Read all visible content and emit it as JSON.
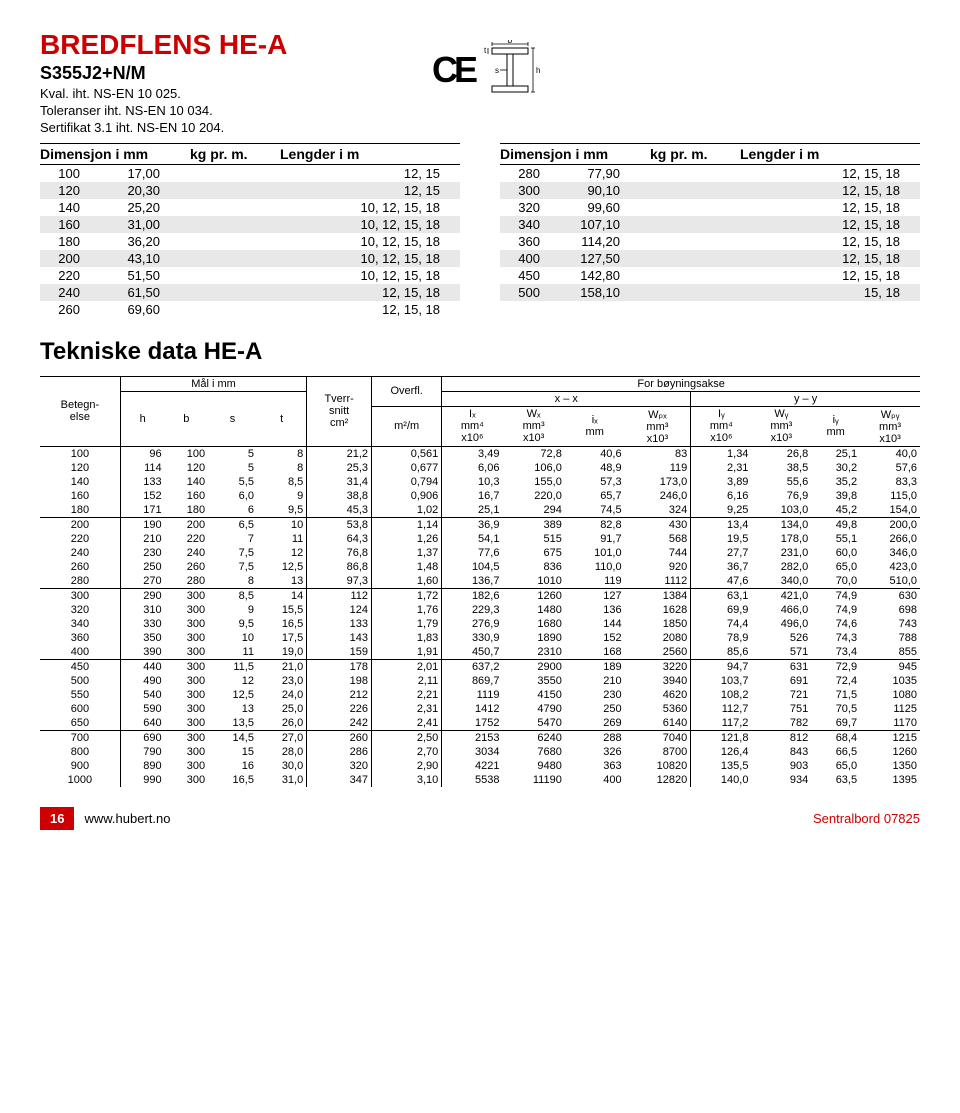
{
  "header": {
    "title": "BREDFLENS HE-A",
    "subtitle": "S355J2+N/M",
    "meta1": "Kval. iht. NS-EN 10 025.",
    "meta2": "Toleranser iht. NS-EN 10 034.",
    "meta3": "Sertifikat 3.1 iht. NS-EN 10 204.",
    "ce": "CE"
  },
  "diagram": {
    "b": "b",
    "t": "t",
    "s": "s",
    "h": "h"
  },
  "dim_left": {
    "h1": "Dimensjon i mm",
    "h2": "kg pr. m.",
    "h3": "Lengder i m",
    "rows": [
      [
        "100",
        "17,00",
        "12, 15"
      ],
      [
        "120",
        "20,30",
        "12, 15"
      ],
      [
        "140",
        "25,20",
        "10, 12, 15, 18"
      ],
      [
        "160",
        "31,00",
        "10, 12, 15, 18"
      ],
      [
        "180",
        "36,20",
        "10, 12, 15, 18"
      ],
      [
        "200",
        "43,10",
        "10, 12, 15, 18"
      ],
      [
        "220",
        "51,50",
        "10, 12, 15, 18"
      ],
      [
        "240",
        "61,50",
        "12, 15, 18"
      ],
      [
        "260",
        "69,60",
        "12, 15, 18"
      ]
    ]
  },
  "dim_right": {
    "h1": "Dimensjon i mm",
    "h2": "kg pr. m.",
    "h3": "Lengder i m",
    "rows": [
      [
        "280",
        "77,90",
        "12, 15, 18"
      ],
      [
        "300",
        "90,10",
        "12, 15, 18"
      ],
      [
        "320",
        "99,60",
        "12, 15, 18"
      ],
      [
        "340",
        "107,10",
        "12, 15, 18"
      ],
      [
        "360",
        "114,20",
        "12, 15, 18"
      ],
      [
        "400",
        "127,50",
        "12, 15, 18"
      ],
      [
        "450",
        "142,80",
        "12, 15, 18"
      ],
      [
        "500",
        "158,10",
        "15, 18"
      ]
    ]
  },
  "tech_title": "Tekniske data HE-A",
  "tech": {
    "hdr": {
      "beteg": "Betegn-\nelse",
      "mal": "Mål i mm",
      "tverr": "Tverr-\nsnitt\ncm²",
      "overfl": "Overfl.",
      "boy": "For bøyningsakse",
      "xx": "x – x",
      "yy": "y – y",
      "h": "h",
      "b": "b",
      "s": "s",
      "t": "t",
      "m2m": "m²/m",
      "Ix": "Iₓ\nmm⁴\nx10⁶",
      "Wx": "Wₓ\nmm³\nx10³",
      "ix": "iₓ\nmm",
      "Wpx": "Wₚₓ\nmm³\nx10³",
      "Iy": "Iᵧ\nmm⁴\nx10⁶",
      "Wy": "Wᵧ\nmm³\nx10³",
      "iy": "iᵧ\nmm",
      "Wpy": "Wₚᵧ\nmm³\nx10³"
    },
    "groups": [
      [
        [
          "100",
          "96",
          "100",
          "5",
          "8",
          "21,2",
          "0,561",
          "3,49",
          "72,8",
          "40,6",
          "83",
          "1,34",
          "26,8",
          "25,1",
          "40,0"
        ],
        [
          "120",
          "114",
          "120",
          "5",
          "8",
          "25,3",
          "0,677",
          "6,06",
          "106,0",
          "48,9",
          "119",
          "2,31",
          "38,5",
          "30,2",
          "57,6"
        ],
        [
          "140",
          "133",
          "140",
          "5,5",
          "8,5",
          "31,4",
          "0,794",
          "10,3",
          "155,0",
          "57,3",
          "173,0",
          "3,89",
          "55,6",
          "35,2",
          "83,3"
        ],
        [
          "160",
          "152",
          "160",
          "6,0",
          "9",
          "38,8",
          "0,906",
          "16,7",
          "220,0",
          "65,7",
          "246,0",
          "6,16",
          "76,9",
          "39,8",
          "115,0"
        ],
        [
          "180",
          "171",
          "180",
          "6",
          "9,5",
          "45,3",
          "1,02",
          "25,1",
          "294",
          "74,5",
          "324",
          "9,25",
          "103,0",
          "45,2",
          "154,0"
        ]
      ],
      [
        [
          "200",
          "190",
          "200",
          "6,5",
          "10",
          "53,8",
          "1,14",
          "36,9",
          "389",
          "82,8",
          "430",
          "13,4",
          "134,0",
          "49,8",
          "200,0"
        ],
        [
          "220",
          "210",
          "220",
          "7",
          "11",
          "64,3",
          "1,26",
          "54,1",
          "515",
          "91,7",
          "568",
          "19,5",
          "178,0",
          "55,1",
          "266,0"
        ],
        [
          "240",
          "230",
          "240",
          "7,5",
          "12",
          "76,8",
          "1,37",
          "77,6",
          "675",
          "101,0",
          "744",
          "27,7",
          "231,0",
          "60,0",
          "346,0"
        ],
        [
          "260",
          "250",
          "260",
          "7,5",
          "12,5",
          "86,8",
          "1,48",
          "104,5",
          "836",
          "110,0",
          "920",
          "36,7",
          "282,0",
          "65,0",
          "423,0"
        ],
        [
          "280",
          "270",
          "280",
          "8",
          "13",
          "97,3",
          "1,60",
          "136,7",
          "1010",
          "119",
          "1112",
          "47,6",
          "340,0",
          "70,0",
          "510,0"
        ]
      ],
      [
        [
          "300",
          "290",
          "300",
          "8,5",
          "14",
          "112",
          "1,72",
          "182,6",
          "1260",
          "127",
          "1384",
          "63,1",
          "421,0",
          "74,9",
          "630"
        ],
        [
          "320",
          "310",
          "300",
          "9",
          "15,5",
          "124",
          "1,76",
          "229,3",
          "1480",
          "136",
          "1628",
          "69,9",
          "466,0",
          "74,9",
          "698"
        ],
        [
          "340",
          "330",
          "300",
          "9,5",
          "16,5",
          "133",
          "1,79",
          "276,9",
          "1680",
          "144",
          "1850",
          "74,4",
          "496,0",
          "74,6",
          "743"
        ],
        [
          "360",
          "350",
          "300",
          "10",
          "17,5",
          "143",
          "1,83",
          "330,9",
          "1890",
          "152",
          "2080",
          "78,9",
          "526",
          "74,3",
          "788"
        ],
        [
          "400",
          "390",
          "300",
          "11",
          "19,0",
          "159",
          "1,91",
          "450,7",
          "2310",
          "168",
          "2560",
          "85,6",
          "571",
          "73,4",
          "855"
        ]
      ],
      [
        [
          "450",
          "440",
          "300",
          "11,5",
          "21,0",
          "178",
          "2,01",
          "637,2",
          "2900",
          "189",
          "3220",
          "94,7",
          "631",
          "72,9",
          "945"
        ],
        [
          "500",
          "490",
          "300",
          "12",
          "23,0",
          "198",
          "2,11",
          "869,7",
          "3550",
          "210",
          "3940",
          "103,7",
          "691",
          "72,4",
          "1035"
        ],
        [
          "550",
          "540",
          "300",
          "12,5",
          "24,0",
          "212",
          "2,21",
          "1119",
          "4150",
          "230",
          "4620",
          "108,2",
          "721",
          "71,5",
          "1080"
        ],
        [
          "600",
          "590",
          "300",
          "13",
          "25,0",
          "226",
          "2,31",
          "1412",
          "4790",
          "250",
          "5360",
          "112,7",
          "751",
          "70,5",
          "1125"
        ],
        [
          "650",
          "640",
          "300",
          "13,5",
          "26,0",
          "242",
          "2,41",
          "1752",
          "5470",
          "269",
          "6140",
          "117,2",
          "782",
          "69,7",
          "1170"
        ]
      ],
      [
        [
          "700",
          "690",
          "300",
          "14,5",
          "27,0",
          "260",
          "2,50",
          "2153",
          "6240",
          "288",
          "7040",
          "121,8",
          "812",
          "68,4",
          "1215"
        ],
        [
          "800",
          "790",
          "300",
          "15",
          "28,0",
          "286",
          "2,70",
          "3034",
          "7680",
          "326",
          "8700",
          "126,4",
          "843",
          "66,5",
          "1260"
        ],
        [
          "900",
          "890",
          "300",
          "16",
          "30,0",
          "320",
          "2,90",
          "4221",
          "9480",
          "363",
          "10820",
          "135,5",
          "903",
          "65,0",
          "1350"
        ],
        [
          "1000",
          "990",
          "300",
          "16,5",
          "31,0",
          "347",
          "3,10",
          "5538",
          "11190",
          "400",
          "12820",
          "140,0",
          "934",
          "63,5",
          "1395"
        ]
      ]
    ]
  },
  "footer": {
    "page": "16",
    "url": "www.hubert.no",
    "right": "Sentralbord 07825"
  }
}
